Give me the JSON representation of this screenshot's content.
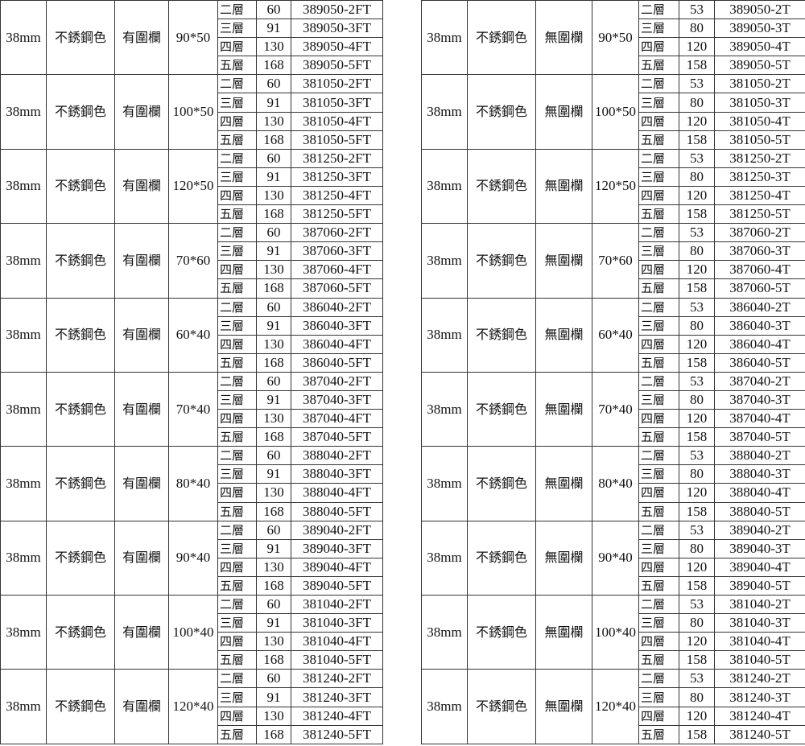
{
  "tables": [
    {
      "id": "left",
      "diameter": "38mm",
      "color": "不銹鋼色",
      "rail": "有圍欄",
      "levels": [
        "二層",
        "三層",
        "四層",
        "五層"
      ],
      "quantities": [
        "60",
        "91",
        "130",
        "168"
      ],
      "groups": [
        {
          "size": "90*50",
          "codes": [
            "389050-2FT",
            "389050-3FT",
            "389050-4FT",
            "389050-5FT"
          ]
        },
        {
          "size": "100*50",
          "codes": [
            "381050-2FT",
            "381050-3FT",
            "381050-4FT",
            "381050-5FT"
          ]
        },
        {
          "size": "120*50",
          "codes": [
            "381250-2FT",
            "381250-3FT",
            "381250-4FT",
            "381250-5FT"
          ]
        },
        {
          "size": "70*60",
          "codes": [
            "387060-2FT",
            "387060-3FT",
            "387060-4FT",
            "387060-5FT"
          ]
        },
        {
          "size": "60*40",
          "codes": [
            "386040-2FT",
            "386040-3FT",
            "386040-4FT",
            "386040-5FT"
          ]
        },
        {
          "size": "70*40",
          "codes": [
            "387040-2FT",
            "387040-3FT",
            "387040-4FT",
            "387040-5FT"
          ]
        },
        {
          "size": "80*40",
          "codes": [
            "388040-2FT",
            "388040-3FT",
            "388040-4FT",
            "388040-5FT"
          ]
        },
        {
          "size": "90*40",
          "codes": [
            "389040-2FT",
            "389040-3FT",
            "389040-4FT",
            "389040-5FT"
          ]
        },
        {
          "size": "100*40",
          "codes": [
            "381040-2FT",
            "381040-3FT",
            "381040-4FT",
            "381040-5FT"
          ]
        },
        {
          "size": "120*40",
          "codes": [
            "381240-2FT",
            "381240-3FT",
            "381240-4FT",
            "381240-5FT"
          ]
        }
      ]
    },
    {
      "id": "right",
      "diameter": "38mm",
      "color": "不銹鋼色",
      "rail": "無圍欄",
      "levels": [
        "二層",
        "三層",
        "四層",
        "五層"
      ],
      "quantities": [
        "53",
        "80",
        "120",
        "158"
      ],
      "groups": [
        {
          "size": "90*50",
          "codes": [
            "389050-2T",
            "389050-3T",
            "389050-4T",
            "389050-5T"
          ]
        },
        {
          "size": "100*50",
          "codes": [
            "381050-2T",
            "381050-3T",
            "381050-4T",
            "381050-5T"
          ]
        },
        {
          "size": "120*50",
          "codes": [
            "381250-2T",
            "381250-3T",
            "381250-4T",
            "381250-5T"
          ]
        },
        {
          "size": "70*60",
          "codes": [
            "387060-2T",
            "387060-3T",
            "387060-4T",
            "387060-5T"
          ]
        },
        {
          "size": "60*40",
          "codes": [
            "386040-2T",
            "386040-3T",
            "386040-4T",
            "386040-5T"
          ]
        },
        {
          "size": "70*40",
          "codes": [
            "387040-2T",
            "387040-3T",
            "387040-4T",
            "387040-5T"
          ]
        },
        {
          "size": "80*40",
          "codes": [
            "388040-2T",
            "388040-3T",
            "388040-4T",
            "388040-5T"
          ]
        },
        {
          "size": "90*40",
          "codes": [
            "389040-2T",
            "389040-3T",
            "389040-4T",
            "389040-5T"
          ]
        },
        {
          "size": "100*40",
          "codes": [
            "381040-2T",
            "381040-3T",
            "381040-4T",
            "381040-5T"
          ]
        },
        {
          "size": "120*40",
          "codes": [
            "381240-2T",
            "381240-3T",
            "381240-4T",
            "381240-5T"
          ]
        }
      ]
    }
  ]
}
